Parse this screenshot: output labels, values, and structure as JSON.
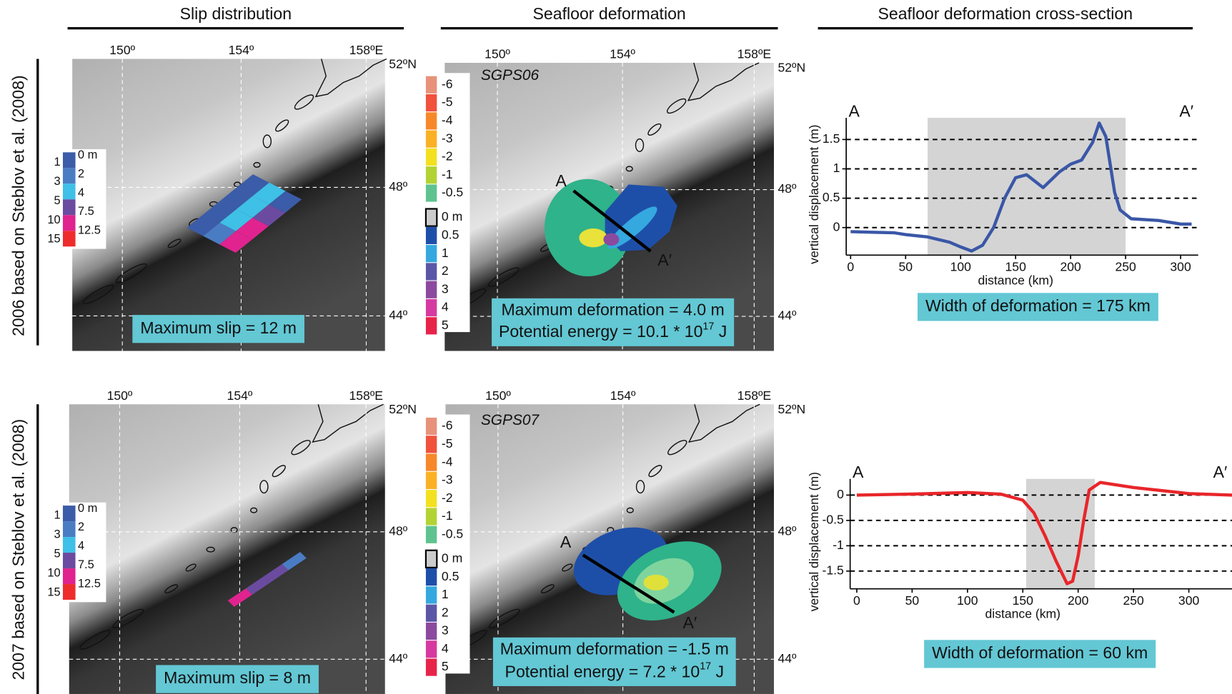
{
  "column_titles": [
    "Slip distribution",
    "Seafloor deformation",
    "Seafloor deformation cross-section"
  ],
  "map_ticks": {
    "lon": [
      "150º",
      "154º",
      "158ºE"
    ],
    "lat": [
      "52ºN",
      "48º",
      "44º"
    ]
  },
  "slip_legend": {
    "left": [
      "1",
      "3",
      "5",
      "10",
      "15"
    ],
    "right": [
      "0 m",
      "2",
      "4",
      "7.5",
      "12.5"
    ],
    "colors": [
      "#3b5ca8",
      "#4a7cc4",
      "#3fc0e6",
      "#6b4ba0",
      "#e0238f",
      "#ee2c2c"
    ]
  },
  "deformation_legend": {
    "labels": [
      "-6",
      "-5",
      "-4",
      "-3",
      "-2",
      "-1",
      "-0.5",
      "0 m",
      "0.5",
      "1",
      "2",
      "3",
      "4",
      "5"
    ],
    "colors": [
      "#e8927c",
      "#f0523c",
      "#f7882a",
      "#fbb125",
      "#f3e121",
      "#b3d334",
      "#5fc38f",
      "#cccccc",
      "#1e4fa8",
      "#35a8e0",
      "#5b57a6",
      "#8b4a9e",
      "#d63aa0",
      "#e8234a"
    ]
  },
  "rows": [
    {
      "label": "2006 based on Steblov et al. (2008)",
      "max_slip": "Maximum slip =  12 m",
      "model": "SGPS06",
      "section_start": "A",
      "section_end": "A′",
      "max_deformation": "Maximum deformation =  4.0 m",
      "energy": {
        "text": "Potential energy = 10.1 * 10",
        "exponent": "17",
        "unit": " J"
      }
    },
    {
      "label": "2007 based on Steblov et al. (2008)",
      "max_slip": "Maximum slip =  8 m",
      "model": "SGPS07",
      "section_start": "A",
      "section_end": "A′",
      "max_deformation": "Maximum deformation =  -1.5 m",
      "energy": {
        "text": "Potential energy = 7.2 * 10",
        "exponent": "17",
        "unit": " J"
      }
    }
  ],
  "chart_data": [
    {
      "type": "line",
      "xlabel": "distance (km)",
      "ylabel": "vertical displacement (m)",
      "caption": "Width of deformation = 175 km",
      "start_label": "A",
      "end_label": "A′",
      "shade": [
        70,
        250
      ],
      "grid": true,
      "x": [
        0,
        20,
        40,
        50,
        70,
        90,
        100,
        110,
        120,
        130,
        140,
        150,
        160,
        175,
        190,
        200,
        210,
        220,
        226,
        232,
        240,
        245,
        255,
        280,
        300,
        310
      ],
      "series": [
        {
          "name": "SGPS06",
          "color": "#3a57a7",
          "values": [
            -0.07,
            -0.08,
            -0.09,
            -0.12,
            -0.16,
            -0.25,
            -0.33,
            -0.4,
            -0.3,
            0,
            0.5,
            0.85,
            0.9,
            0.68,
            0.95,
            1.08,
            1.15,
            1.45,
            1.78,
            1.55,
            0.6,
            0.3,
            0.15,
            0.12,
            0.06,
            0.06
          ]
        }
      ],
      "xlim": [
        -4,
        316
      ],
      "ylim": [
        -0.47,
        1.87
      ],
      "xticks": [
        0,
        50,
        100,
        150,
        200,
        250,
        300
      ],
      "yticks": [
        0,
        0.5,
        1,
        1.5
      ]
    },
    {
      "type": "line",
      "xlabel": "distance (km)",
      "ylabel": "vertical displacement (m)",
      "caption": "Width of deformation = 60 km",
      "start_label": "A",
      "end_label": "A′",
      "shade": [
        153,
        215
      ],
      "grid": true,
      "x": [
        0,
        50,
        100,
        130,
        150,
        160,
        170,
        180,
        190,
        195,
        200,
        205,
        210,
        220,
        250,
        300,
        339
      ],
      "series": [
        {
          "name": "SGPS07",
          "color": "#e8262a",
          "values": [
            0,
            0.02,
            0.05,
            0.02,
            -0.1,
            -0.35,
            -0.8,
            -1.3,
            -1.75,
            -1.7,
            -1.2,
            -0.5,
            0.1,
            0.25,
            0.15,
            0.03,
            0
          ]
        }
      ],
      "xlim": [
        -6,
        339
      ],
      "ylim": [
        -1.85,
        0.32
      ],
      "xticks": [
        0,
        50,
        100,
        150,
        200,
        250,
        300
      ],
      "yticks": [
        0,
        -0.5,
        -1,
        -1.5
      ]
    }
  ]
}
